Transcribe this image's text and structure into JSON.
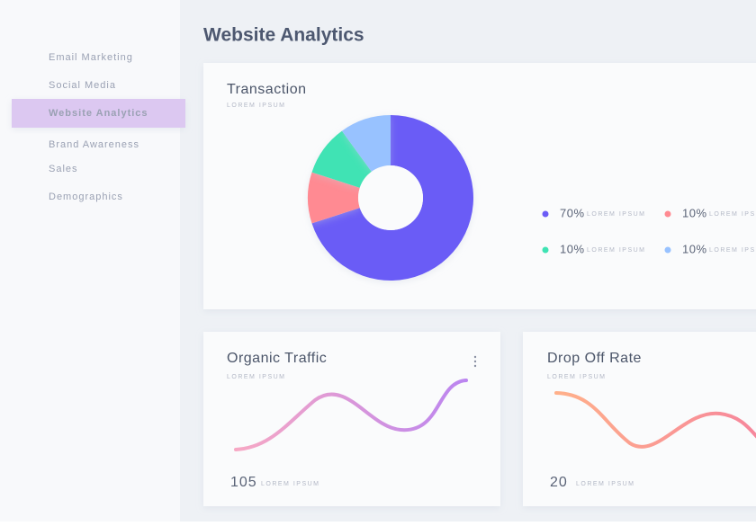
{
  "sidebar": {
    "items": [
      {
        "label": "Email Marketing",
        "active": false
      },
      {
        "label": "Social Media",
        "active": false
      },
      {
        "label": "Website Analytics",
        "active": true
      },
      {
        "label": "Brand Awareness",
        "active": false
      },
      {
        "label": "Sales",
        "active": false
      },
      {
        "label": "Demographics",
        "active": false
      }
    ]
  },
  "header": {
    "title": "Website Analytics"
  },
  "transaction": {
    "title": "Transaction",
    "subtitle": "LOREM IPSUM",
    "type": "donut",
    "segments": [
      {
        "value": 70,
        "value_label": "70%",
        "caption": "LOREM IPSUM",
        "color": "#6b5cf6"
      },
      {
        "value": 10,
        "value_label": "10%",
        "caption": "LOREM IPSUM",
        "color": "#ff8a92"
      },
      {
        "value": 10,
        "value_label": "10%",
        "caption": "LOREM IPSUM",
        "color": "#3fe3b4"
      },
      {
        "value": 10,
        "value_label": "10%",
        "caption": "LOREM IPSUM",
        "color": "#98c2ff"
      }
    ]
  },
  "organic_traffic": {
    "title": "Organic Traffic",
    "subtitle": "LOREM IPSUM",
    "value": 105,
    "caption": "LOREM IPSUM"
  },
  "drop_off_rate": {
    "title": "Drop Off Rate",
    "subtitle": "LOREM IPSUM",
    "value": 20,
    "caption": "LOREM IPSUM"
  }
}
